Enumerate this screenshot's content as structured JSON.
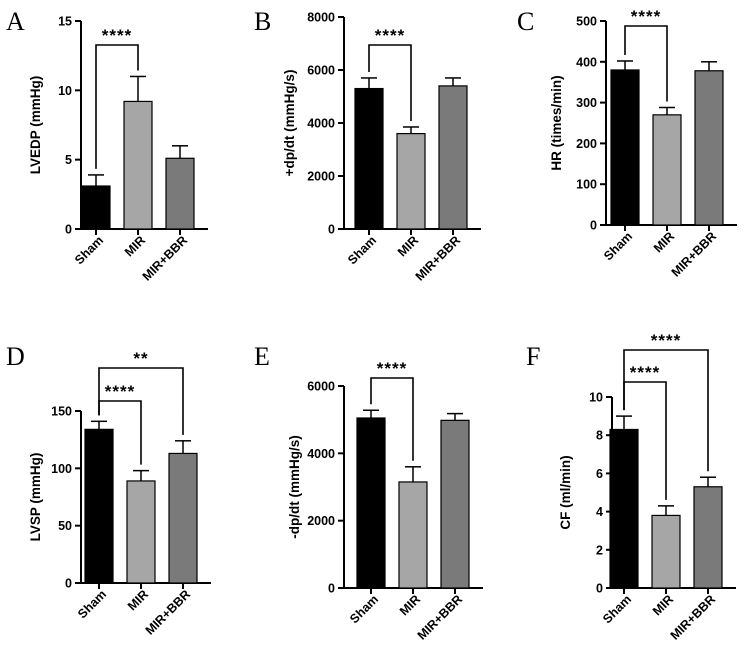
{
  "colors": {
    "sham": "#000000",
    "mir": "#a6a6a6",
    "mir_bbr": "#7a7a7a",
    "axis": "#000000"
  },
  "chart_data": [
    {
      "type": "bar",
      "panel": "A",
      "ylabel": "LVEDP (mmHg)",
      "ylim": [
        0,
        15
      ],
      "yticks": [
        0,
        5,
        10,
        15
      ],
      "categories": [
        "Sham",
        "MIR",
        "MIR+BBR"
      ],
      "values": [
        3.1,
        9.2,
        5.1
      ],
      "errors": [
        0.8,
        1.8,
        0.9
      ],
      "significance": [
        {
          "from": 0,
          "to": 1,
          "label": "****"
        }
      ]
    },
    {
      "type": "bar",
      "panel": "B",
      "ylabel": "+dp/dt (mmHg/s)",
      "ylim": [
        0,
        8000
      ],
      "yticks": [
        0,
        2000,
        4000,
        6000,
        8000
      ],
      "categories": [
        "Sham",
        "MIR",
        "MIR+BBR"
      ],
      "values": [
        5300,
        3600,
        5400
      ],
      "errors": [
        400,
        250,
        300
      ],
      "significance": [
        {
          "from": 0,
          "to": 1,
          "label": "****"
        }
      ]
    },
    {
      "type": "bar",
      "panel": "C",
      "ylabel": "HR (times/min)",
      "ylim": [
        0,
        500
      ],
      "yticks": [
        0,
        100,
        200,
        300,
        400,
        500
      ],
      "categories": [
        "Sham",
        "MIR",
        "MIR+BBR"
      ],
      "values": [
        380,
        270,
        378
      ],
      "errors": [
        22,
        18,
        22
      ],
      "significance": [
        {
          "from": 0,
          "to": 1,
          "label": "****"
        }
      ]
    },
    {
      "type": "bar",
      "panel": "D",
      "ylabel": "LVSP (mmHg)",
      "ylim": [
        0,
        150
      ],
      "yticks": [
        0,
        50,
        100,
        150
      ],
      "categories": [
        "Sham",
        "MIR",
        "MIR+BBR"
      ],
      "values": [
        134,
        89,
        113
      ],
      "errors": [
        7,
        9,
        11
      ],
      "significance": [
        {
          "from": 0,
          "to": 1,
          "label": "****"
        },
        {
          "from": 0,
          "to": 2,
          "label": "**"
        }
      ]
    },
    {
      "type": "bar",
      "panel": "E",
      "ylabel": "-dp/dt (mmHg/s)",
      "ylim": [
        0,
        6000
      ],
      "yticks": [
        0,
        2000,
        4000,
        6000
      ],
      "categories": [
        "Sham",
        "MIR",
        "MIR+BBR"
      ],
      "values": [
        5050,
        3150,
        4980
      ],
      "errors": [
        230,
        450,
        200
      ],
      "significance": [
        {
          "from": 0,
          "to": 1,
          "label": "****"
        }
      ]
    },
    {
      "type": "bar",
      "panel": "F",
      "ylabel": "CF (ml/min)",
      "ylim": [
        0,
        10
      ],
      "yticks": [
        0,
        2,
        4,
        6,
        8,
        10
      ],
      "categories": [
        "Sham",
        "MIR",
        "MIR+BBR"
      ],
      "values": [
        8.3,
        3.8,
        5.3
      ],
      "errors": [
        0.7,
        0.5,
        0.5
      ],
      "significance": [
        {
          "from": 0,
          "to": 1,
          "label": "****"
        },
        {
          "from": 0,
          "to": 2,
          "label": "****"
        }
      ]
    }
  ]
}
